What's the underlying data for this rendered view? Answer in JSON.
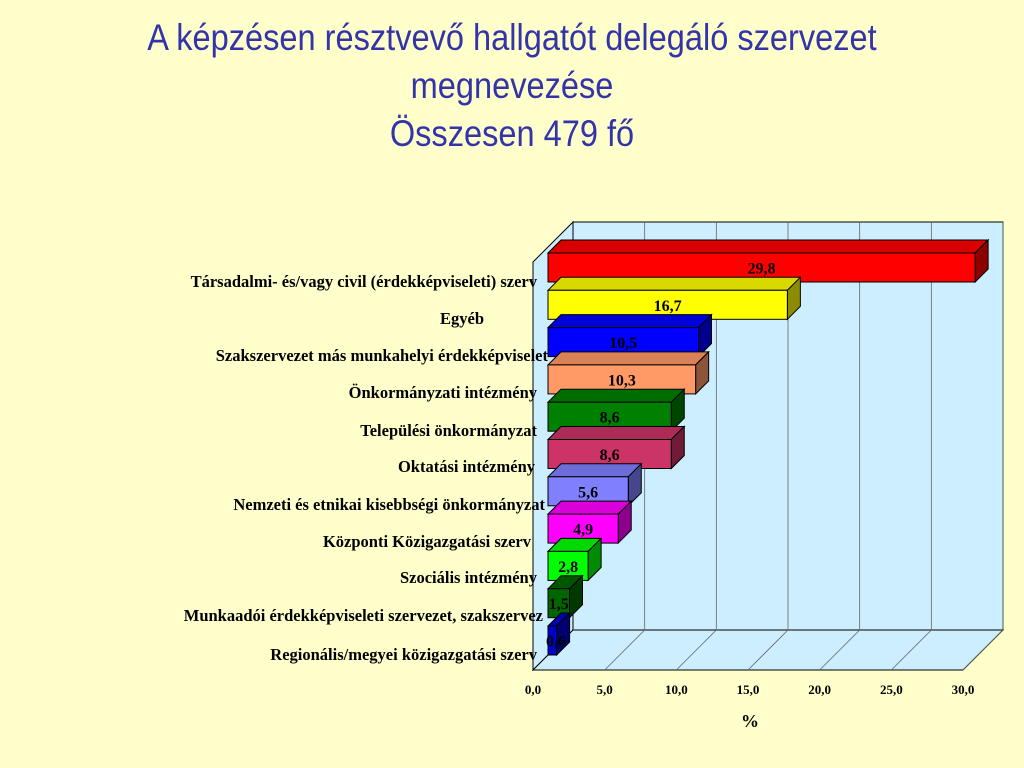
{
  "chart_data": {
    "type": "bar",
    "orientation": "horizontal",
    "title": [
      "A képzésen résztvevő hallgatót delegáló szervezet",
      "megnevezése",
      "Összesen 479 fő"
    ],
    "xlabel": "%",
    "xlim": [
      0,
      30
    ],
    "xticks": [
      "0,0",
      "5,0",
      "10,0",
      "15,0",
      "20,0",
      "25,0",
      "30,0"
    ],
    "grid": true,
    "categories": [
      "Társadalmi- és/vagy civil (érdekképviseleti) szerv",
      "Egyéb",
      "Szakszervezet más munkahelyi érdekképviselet",
      "Önkormányzati intézmény",
      "Települési önkormányzat",
      "Oktatási intézmény",
      "Nemzeti és etnikai kisebbségi önkormányzat",
      "Központi Közigazgatási szerv",
      "Szociális intézmény",
      "Munkaadói  érdekképviseleti szervezet, szakszervez",
      "Regionális/megyei közigazgatási szerv"
    ],
    "values": [
      29.8,
      16.7,
      10.5,
      10.3,
      8.6,
      8.6,
      5.6,
      4.9,
      2.8,
      1.5,
      0.6
    ],
    "labels": [
      "29,8",
      "16,7",
      "10,5",
      "10,3",
      "8,6",
      "8,6",
      "5,6",
      "4,9",
      "2,8",
      "1,5",
      "0,6"
    ],
    "colors": [
      "#ff0000",
      "#ffff00",
      "#0000ff",
      "#ff9966",
      "#008000",
      "#cc3366",
      "#8080ff",
      "#ff00ff",
      "#00ff00",
      "#006600",
      "#0000cc"
    ]
  }
}
